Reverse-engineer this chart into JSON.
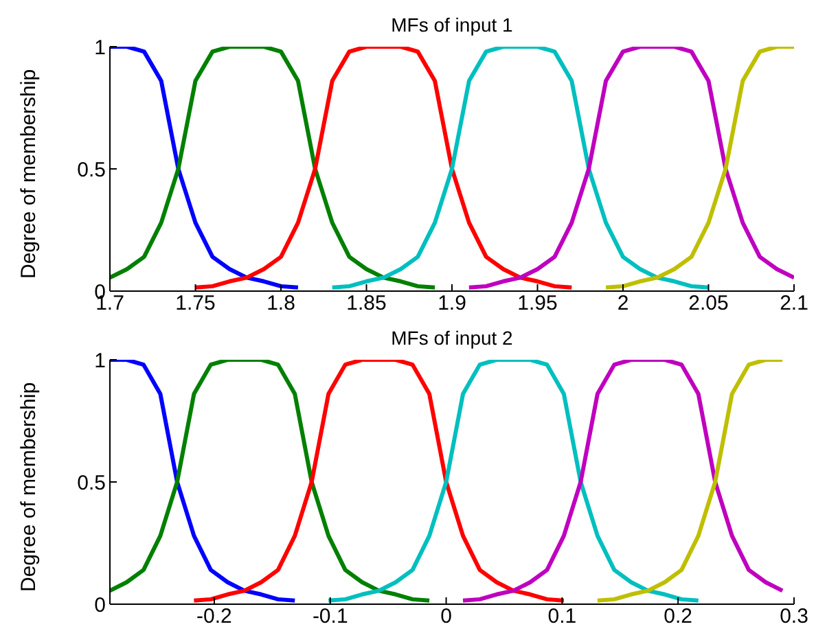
{
  "chart_data": [
    {
      "type": "line",
      "title": "MFs of input 1",
      "ylabel": "Degree of membership",
      "x": [
        1.7,
        1.71,
        1.72,
        1.73,
        1.74,
        1.75,
        1.76,
        1.77,
        1.78,
        1.79,
        1.8,
        1.81,
        1.82,
        1.83,
        1.84,
        1.85,
        1.86,
        1.87,
        1.88,
        1.89,
        1.9,
        1.91,
        1.92,
        1.93,
        1.94,
        1.95,
        1.96,
        1.97,
        1.98,
        1.99,
        2.0,
        2.01,
        2.02,
        2.03,
        2.04,
        2.05,
        2.06,
        2.07,
        2.08,
        2.09,
        2.1
      ],
      "xlim": [
        1.7,
        2.1
      ],
      "xticks": [
        1.7,
        1.75,
        1.8,
        1.85,
        1.9,
        1.95,
        2,
        2.05,
        2.1
      ],
      "ylim": [
        0,
        1
      ],
      "yticks": [
        0,
        0.5,
        1
      ],
      "series": [
        {
          "color": "#0000ff",
          "values": [
            1,
            1,
            0.98,
            0.86,
            0.5,
            0.28,
            0.14,
            0.09,
            0.055,
            0.04,
            0.02,
            0.015,
            null,
            null,
            null,
            null,
            null,
            null,
            null,
            null,
            null,
            null,
            null,
            null,
            null,
            null,
            null,
            null,
            null,
            null,
            null,
            null,
            null,
            null,
            null,
            null,
            null,
            null,
            null,
            null,
            null
          ]
        },
        {
          "color": "#008000",
          "values": [
            0.055,
            0.09,
            0.14,
            0.28,
            0.5,
            0.86,
            0.98,
            1,
            1,
            1,
            0.98,
            0.86,
            0.5,
            0.28,
            0.14,
            0.09,
            0.055,
            0.04,
            0.02,
            0.015,
            null,
            null,
            null,
            null,
            null,
            null,
            null,
            null,
            null,
            null,
            null,
            null,
            null,
            null,
            null,
            null,
            null,
            null,
            null,
            null,
            null
          ]
        },
        {
          "color": "#ff0000",
          "values": [
            null,
            null,
            null,
            null,
            null,
            0.015,
            0.02,
            0.04,
            0.055,
            0.09,
            0.14,
            0.28,
            0.5,
            0.86,
            0.98,
            1,
            1,
            1,
            0.98,
            0.86,
            0.5,
            0.28,
            0.14,
            0.09,
            0.055,
            0.04,
            0.02,
            0.015,
            null,
            null,
            null,
            null,
            null,
            null,
            null,
            null,
            null,
            null,
            null,
            null,
            null
          ]
        },
        {
          "color": "#00bfbf",
          "values": [
            null,
            null,
            null,
            null,
            null,
            null,
            null,
            null,
            null,
            null,
            null,
            null,
            null,
            0.015,
            0.02,
            0.04,
            0.055,
            0.09,
            0.14,
            0.28,
            0.5,
            0.86,
            0.98,
            1,
            1,
            1,
            0.98,
            0.86,
            0.5,
            0.28,
            0.14,
            0.09,
            0.055,
            0.04,
            0.02,
            0.015,
            null,
            null,
            null,
            null,
            null
          ]
        },
        {
          "color": "#bf00bf",
          "values": [
            null,
            null,
            null,
            null,
            null,
            null,
            null,
            null,
            null,
            null,
            null,
            null,
            null,
            null,
            null,
            null,
            null,
            null,
            null,
            null,
            null,
            0.015,
            0.02,
            0.04,
            0.055,
            0.09,
            0.14,
            0.28,
            0.5,
            0.86,
            0.98,
            1,
            1,
            1,
            0.98,
            0.86,
            0.5,
            0.28,
            0.14,
            0.09,
            0.055
          ]
        },
        {
          "color": "#bfbf00",
          "values": [
            null,
            null,
            null,
            null,
            null,
            null,
            null,
            null,
            null,
            null,
            null,
            null,
            null,
            null,
            null,
            null,
            null,
            null,
            null,
            null,
            null,
            null,
            null,
            null,
            null,
            null,
            null,
            null,
            null,
            0.015,
            0.02,
            0.04,
            0.055,
            0.09,
            0.14,
            0.28,
            0.5,
            0.86,
            0.98,
            1,
            1
          ]
        }
      ]
    },
    {
      "type": "line",
      "title": "MFs of input 2",
      "ylabel": "Degree of membership",
      "x": [
        -0.29,
        -0.2755,
        -0.261,
        -0.2465,
        -0.232,
        -0.2175,
        -0.203,
        -0.1885,
        -0.174,
        -0.1595,
        -0.145,
        -0.1305,
        -0.116,
        -0.1015,
        -0.087,
        -0.0725,
        -0.058,
        -0.0435,
        -0.029,
        -0.0145,
        0,
        0.0145,
        0.029,
        0.0435,
        0.058,
        0.0725,
        0.087,
        0.1015,
        0.116,
        0.1305,
        0.145,
        0.1595,
        0.174,
        0.1885,
        0.203,
        0.2175,
        0.232,
        0.2465,
        0.261,
        0.2755,
        0.29
      ],
      "xlim": [
        -0.29,
        0.3
      ],
      "xticks": [
        -0.2,
        -0.1,
        0,
        0.1,
        0.2,
        0.3
      ],
      "ylim": [
        0,
        1
      ],
      "yticks": [
        0,
        0.5,
        1
      ],
      "series": [
        {
          "color": "#0000ff",
          "values": [
            1,
            1,
            0.98,
            0.86,
            0.5,
            0.28,
            0.14,
            0.09,
            0.055,
            0.04,
            0.02,
            0.015,
            null,
            null,
            null,
            null,
            null,
            null,
            null,
            null,
            null,
            null,
            null,
            null,
            null,
            null,
            null,
            null,
            null,
            null,
            null,
            null,
            null,
            null,
            null,
            null,
            null,
            null,
            null,
            null,
            null
          ]
        },
        {
          "color": "#008000",
          "values": [
            0.055,
            0.09,
            0.14,
            0.28,
            0.5,
            0.86,
            0.98,
            1,
            1,
            1,
            0.98,
            0.86,
            0.5,
            0.28,
            0.14,
            0.09,
            0.055,
            0.04,
            0.02,
            0.015,
            null,
            null,
            null,
            null,
            null,
            null,
            null,
            null,
            null,
            null,
            null,
            null,
            null,
            null,
            null,
            null,
            null,
            null,
            null,
            null,
            null
          ]
        },
        {
          "color": "#ff0000",
          "values": [
            null,
            null,
            null,
            null,
            null,
            0.015,
            0.02,
            0.04,
            0.055,
            0.09,
            0.14,
            0.28,
            0.5,
            0.86,
            0.98,
            1,
            1,
            1,
            0.98,
            0.86,
            0.5,
            0.28,
            0.14,
            0.09,
            0.055,
            0.04,
            0.02,
            0.015,
            null,
            null,
            null,
            null,
            null,
            null,
            null,
            null,
            null,
            null,
            null,
            null,
            null
          ]
        },
        {
          "color": "#00bfbf",
          "values": [
            null,
            null,
            null,
            null,
            null,
            null,
            null,
            null,
            null,
            null,
            null,
            null,
            null,
            0.015,
            0.02,
            0.04,
            0.055,
            0.09,
            0.14,
            0.28,
            0.5,
            0.86,
            0.98,
            1,
            1,
            1,
            0.98,
            0.86,
            0.5,
            0.28,
            0.14,
            0.09,
            0.055,
            0.04,
            0.02,
            0.015,
            null,
            null,
            null,
            null,
            null
          ]
        },
        {
          "color": "#bf00bf",
          "values": [
            null,
            null,
            null,
            null,
            null,
            null,
            null,
            null,
            null,
            null,
            null,
            null,
            null,
            null,
            null,
            null,
            null,
            null,
            null,
            null,
            null,
            0.015,
            0.02,
            0.04,
            0.055,
            0.09,
            0.14,
            0.28,
            0.5,
            0.86,
            0.98,
            1,
            1,
            1,
            0.98,
            0.86,
            0.5,
            0.28,
            0.14,
            0.09,
            0.055
          ]
        },
        {
          "color": "#bfbf00",
          "values": [
            null,
            null,
            null,
            null,
            null,
            null,
            null,
            null,
            null,
            null,
            null,
            null,
            null,
            null,
            null,
            null,
            null,
            null,
            null,
            null,
            null,
            null,
            null,
            null,
            null,
            null,
            null,
            null,
            null,
            0.015,
            0.02,
            0.04,
            0.055,
            0.09,
            0.14,
            0.28,
            0.5,
            0.86,
            0.98,
            1,
            1
          ]
        }
      ]
    }
  ]
}
